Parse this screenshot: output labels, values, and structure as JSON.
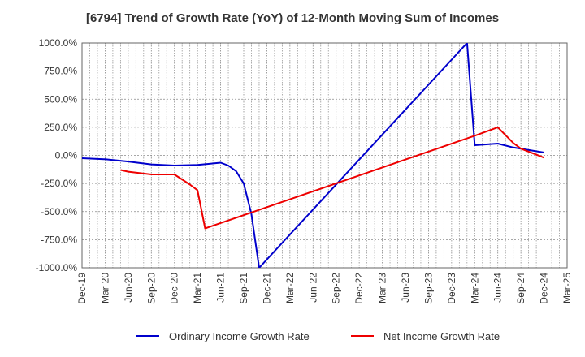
{
  "chart_data": {
    "type": "line",
    "title": "[6794]  Trend of Growth Rate (YoY) of 12-Month Moving Sum of Incomes",
    "xlabel": "",
    "ylabel": "",
    "ylim": [
      -1000,
      1000
    ],
    "yticks": [
      -1000,
      -750,
      -500,
      -250,
      0,
      250,
      500,
      750,
      1000
    ],
    "ytick_labels": [
      "-1000.0%",
      "-750.0%",
      "-500.0%",
      "-250.0%",
      "0.0%",
      "250.0%",
      "500.0%",
      "750.0%",
      "1000.0%"
    ],
    "x_categories": [
      "Dec-19",
      "Mar-20",
      "Jun-20",
      "Sep-20",
      "Dec-20",
      "Mar-21",
      "Jun-21",
      "Sep-21",
      "Dec-21",
      "Mar-22",
      "Jun-22",
      "Sep-22",
      "Dec-22",
      "Mar-23",
      "Jun-23",
      "Sep-23",
      "Dec-23",
      "Mar-24",
      "Jun-24",
      "Sep-24",
      "Dec-24",
      "Mar-25"
    ],
    "grid": true,
    "legend_position": "bottom",
    "series": [
      {
        "name": "Ordinary Income Growth Rate",
        "color": "#0000cc",
        "points": [
          [
            0,
            -25
          ],
          [
            1,
            -35
          ],
          [
            2,
            -55
          ],
          [
            3,
            -80
          ],
          [
            4,
            -90
          ],
          [
            5,
            -85
          ],
          [
            6,
            -65
          ],
          [
            6.33,
            -90
          ],
          [
            6.67,
            -140
          ],
          [
            7,
            -250
          ],
          [
            7.33,
            -520
          ],
          [
            7.67,
            -1000
          ],
          [
            16.67,
            1000
          ],
          [
            17,
            90
          ],
          [
            18,
            105
          ],
          [
            18.67,
            70
          ],
          [
            19,
            60
          ],
          [
            20,
            25
          ]
        ]
      },
      {
        "name": "Net Income Growth Rate",
        "color": "#ee0000",
        "points": [
          [
            1.67,
            -130
          ],
          [
            2,
            -145
          ],
          [
            3,
            -170
          ],
          [
            4,
            -170
          ],
          [
            4.67,
            -260
          ],
          [
            5,
            -310
          ],
          [
            5.33,
            -650
          ],
          [
            17,
            175
          ],
          [
            18,
            250
          ],
          [
            18.67,
            110
          ],
          [
            19,
            60
          ],
          [
            20,
            -20
          ]
        ]
      }
    ]
  }
}
